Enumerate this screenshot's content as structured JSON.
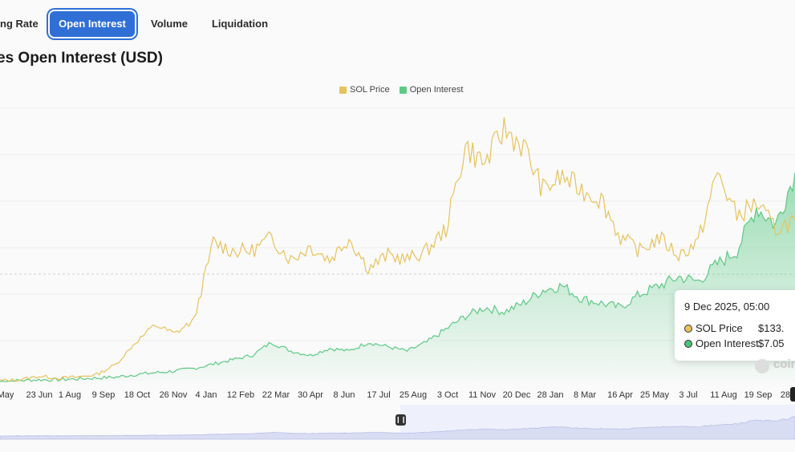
{
  "tabs": [
    {
      "label": "ng Rate",
      "active": false
    },
    {
      "label": "Open Interest",
      "active": true
    },
    {
      "label": "Volume",
      "active": false
    },
    {
      "label": "Liquidation",
      "active": false
    }
  ],
  "tooltip": {
    "date": "9 Dec 2025, 05:00",
    "rows": [
      {
        "label": "SOL Price",
        "value": "$133.",
        "color": "#e8c25a"
      },
      {
        "label": "Open Interest",
        "value": "$7.05",
        "color": "#4fc07a"
      }
    ]
  },
  "watermark": "coin",
  "colors": {
    "price": "#e8c25a",
    "oi": "#5cc985",
    "navigator": "#dfe3f5"
  },
  "chart_data": {
    "type": "line",
    "title": "es Open Interest (USD)",
    "legend": [
      "SOL Price",
      "Open Interest"
    ],
    "legend_position": "top-center",
    "grid": true,
    "x_ticks": [
      "May",
      "23 Jun",
      "1 Aug",
      "9 Sep",
      "18 Oct",
      "26 Nov",
      "4 Jan",
      "12 Feb",
      "22 Mar",
      "30 Apr",
      "8 Jun",
      "17 Jul",
      "25 Aug",
      "3 Oct",
      "11 Nov",
      "20 Dec",
      "28 Jan",
      "8 Mar",
      "16 Apr",
      "25 May",
      "3 Jul",
      "11 Aug",
      "19 Sep",
      "28"
    ],
    "series": [
      {
        "name": "SOL Price",
        "type": "line",
        "values": [
          1,
          2,
          6,
          4,
          5,
          8,
          20,
          45,
          65,
          55,
          70,
          160,
          150,
          150,
          165,
          140,
          155,
          140,
          165,
          130,
          145,
          140,
          150,
          175,
          270,
          250,
          290,
          270,
          220,
          235,
          220,
          210,
          165,
          150,
          165,
          145,
          160,
          240,
          190,
          205,
          175,
          185
        ]
      },
      {
        "name": "Open Interest",
        "type": "area",
        "values": [
          0,
          1,
          2,
          2,
          3,
          4,
          5,
          8,
          10,
          12,
          15,
          20,
          25,
          30,
          45,
          35,
          30,
          38,
          35,
          45,
          40,
          35,
          45,
          60,
          75,
          85,
          80,
          90,
          105,
          110,
          95,
          90,
          85,
          100,
          110,
          120,
          115,
          135,
          150,
          200,
          180,
          240
        ]
      }
    ]
  }
}
